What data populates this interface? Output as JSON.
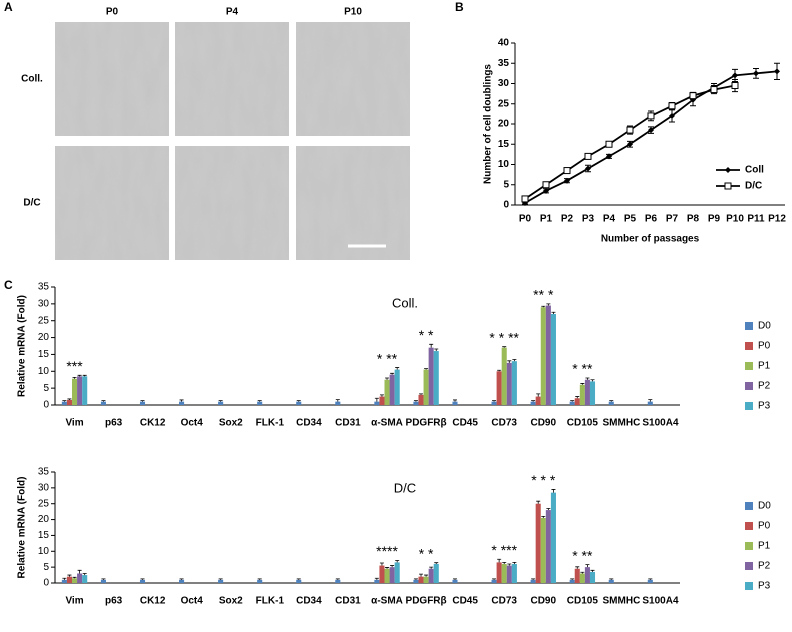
{
  "panel_labels": [
    "A",
    "B",
    "C"
  ],
  "micrographs": {
    "columns": [
      "P0",
      "P4",
      "P10"
    ],
    "rows": [
      "Coll.",
      "D/C"
    ]
  },
  "chart_data": [
    {
      "type": "line",
      "ylabel": "Number of cell doublings",
      "xlabel": "Number of passages",
      "categories": [
        "P0",
        "P1",
        "P2",
        "P3",
        "P4",
        "P5",
        "P6",
        "P7",
        "P8",
        "P9",
        "P10",
        "P11",
        "P12"
      ],
      "ylim": [
        0,
        40
      ],
      "yticks": [
        0,
        5,
        10,
        15,
        20,
        25,
        30,
        35,
        40
      ],
      "series": [
        {
          "name": "Coll",
          "color": "#000000",
          "marker": "diamond",
          "values": [
            0.5,
            3.5,
            6,
            9,
            12,
            15,
            18.5,
            22,
            26,
            29,
            32,
            32.5,
            33
          ],
          "errors": [
            0.3,
            0.5,
            0.5,
            0.8,
            0.5,
            0.7,
            0.8,
            1.5,
            1.5,
            1,
            1.5,
            1.2,
            2
          ]
        },
        {
          "name": "D/C",
          "color": "#000000",
          "marker": "square",
          "values": [
            1.5,
            5,
            8.5,
            12,
            15,
            18.5,
            22,
            24.5,
            27,
            28.5,
            29.5,
            null,
            null
          ],
          "errors": [
            0.3,
            0.5,
            0.5,
            0.6,
            0.5,
            1,
            1.2,
            0.8,
            0.8,
            1,
            1.5,
            null,
            null
          ]
        }
      ]
    },
    {
      "type": "bar",
      "title": "Coll.",
      "ylabel": "Relative mRNA (Fold)",
      "categories": [
        "Vim",
        "p63",
        "CK12",
        "Oct4",
        "Sox2",
        "FLK-1",
        "CD34",
        "CD31",
        "α-SMA",
        "PDGFRβ",
        "CD45",
        "CD73",
        "CD90",
        "CD105",
        "SMMHC",
        "S100A4"
      ],
      "ylim": [
        0,
        35
      ],
      "yticks": [
        0,
        5,
        10,
        15,
        20,
        25,
        30,
        35
      ],
      "series": [
        {
          "name": "D0",
          "color": "#4f81bd",
          "values": [
            1,
            1,
            1,
            1,
            1,
            1,
            1,
            1,
            1,
            1,
            1,
            1,
            1,
            1,
            1,
            1
          ],
          "errors": [
            0.3,
            0.3,
            0.3,
            0.5,
            0.3,
            0.3,
            0.3,
            0.6,
            1,
            0.3,
            0.5,
            0.3,
            0.3,
            0.3,
            0.3,
            0.6
          ]
        },
        {
          "name": "P0",
          "color": "#c0504d",
          "values": [
            1.5,
            0,
            0,
            0,
            0,
            0,
            0,
            0,
            2.5,
            3,
            0,
            10,
            2.5,
            2,
            0,
            0
          ],
          "errors": [
            0.3,
            0,
            0,
            0,
            0,
            0,
            0,
            0,
            0.5,
            0.3,
            0,
            0.3,
            0.8,
            0.5,
            0,
            0
          ]
        },
        {
          "name": "P1",
          "color": "#9bbb59",
          "values": [
            7.8,
            0,
            0,
            0,
            0,
            0,
            0,
            0,
            7.5,
            10.5,
            0,
            17,
            29,
            6,
            0,
            0
          ],
          "errors": [
            0.4,
            0,
            0,
            0,
            0,
            0,
            0,
            0,
            0.5,
            0.3,
            0,
            0.3,
            0.3,
            0.4,
            0,
            0
          ]
        },
        {
          "name": "P2",
          "color": "#8064a2",
          "values": [
            8.5,
            0,
            0,
            0,
            0,
            0,
            0,
            0,
            9,
            17,
            0,
            12.5,
            29.5,
            7.5,
            0,
            0
          ],
          "errors": [
            0.3,
            0,
            0,
            0,
            0,
            0,
            0,
            0,
            0.4,
            1,
            0,
            0.6,
            0.5,
            0.5,
            0,
            0
          ]
        },
        {
          "name": "P3",
          "color": "#4bacc6",
          "values": [
            8.5,
            0,
            0,
            0,
            0,
            0,
            0,
            0,
            10.5,
            16,
            0,
            13,
            27,
            7,
            0,
            0
          ],
          "errors": [
            0.3,
            0,
            0,
            0,
            0,
            0,
            0,
            0,
            0.6,
            0.6,
            0,
            0.5,
            0.5,
            0.5,
            0,
            0
          ]
        }
      ],
      "annotations": [
        {
          "x": "Vim",
          "text": "***"
        },
        {
          "x": "α-SMA",
          "text": "* **"
        },
        {
          "x": "PDGFRβ",
          "text": "* *"
        },
        {
          "x": "CD73",
          "text": "* * **"
        },
        {
          "x": "CD90",
          "text": "** *"
        },
        {
          "x": "CD105",
          "text": "* **"
        }
      ]
    },
    {
      "type": "bar",
      "title": "D/C",
      "ylabel": "Relative mRNA (Fold)",
      "categories": [
        "Vim",
        "p63",
        "CK12",
        "Oct4",
        "Sox2",
        "FLK-1",
        "CD34",
        "CD31",
        "α-SMA",
        "PDGFRβ",
        "CD45",
        "CD73",
        "CD90",
        "CD105",
        "SMMHC",
        "S100A4"
      ],
      "ylim": [
        0,
        35
      ],
      "yticks": [
        0,
        5,
        10,
        15,
        20,
        25,
        30,
        35
      ],
      "series": [
        {
          "name": "D0",
          "color": "#4f81bd",
          "values": [
            1,
            1,
            1,
            1,
            1,
            1,
            1,
            1,
            1,
            1,
            1,
            1,
            1,
            1,
            1,
            1
          ],
          "errors": [
            0.5,
            0.3,
            0.3,
            0.3,
            0.3,
            0.3,
            0.3,
            0.3,
            0.5,
            0.3,
            0.3,
            0.3,
            0.3,
            0.3,
            0.3,
            0.3
          ]
        },
        {
          "name": "P0",
          "color": "#c0504d",
          "values": [
            2,
            0,
            0,
            0,
            0,
            0,
            0,
            0,
            5.5,
            2,
            0,
            6.5,
            25,
            4.5,
            0,
            0
          ],
          "errors": [
            0.5,
            0,
            0,
            0,
            0,
            0,
            0,
            0,
            0.8,
            0.8,
            0,
            1,
            0.8,
            0.6,
            0,
            0
          ]
        },
        {
          "name": "P1",
          "color": "#9bbb59",
          "values": [
            1.5,
            0,
            0,
            0,
            0,
            0,
            0,
            0,
            4.5,
            2,
            0,
            6,
            20.5,
            3,
            0,
            0
          ],
          "errors": [
            0.3,
            0,
            0,
            0,
            0,
            0,
            0,
            0,
            0.4,
            0.5,
            0,
            0.5,
            0.5,
            0.4,
            0,
            0
          ]
        },
        {
          "name": "P2",
          "color": "#8064a2",
          "values": [
            3,
            0,
            0,
            0,
            0,
            0,
            0,
            0,
            5,
            4.5,
            0,
            5.5,
            23,
            5,
            0,
            0
          ],
          "errors": [
            1,
            0,
            0,
            0,
            0,
            0,
            0,
            0,
            0.5,
            0.5,
            0,
            0.5,
            0.5,
            0.8,
            0,
            0
          ]
        },
        {
          "name": "P3",
          "color": "#4bacc6",
          "values": [
            2.5,
            0,
            0,
            0,
            0,
            0,
            0,
            0,
            6.5,
            6,
            0,
            6,
            28.5,
            3.5,
            0,
            0
          ],
          "errors": [
            0.5,
            0,
            0,
            0,
            0,
            0,
            0,
            0,
            0.6,
            0.4,
            0,
            0.5,
            1,
            0.5,
            0,
            0
          ]
        }
      ],
      "annotations": [
        {
          "x": "α-SMA",
          "text": "****"
        },
        {
          "x": "PDGFRβ",
          "text": "* *"
        },
        {
          "x": "CD73",
          "text": "* ***"
        },
        {
          "x": "CD90",
          "text": "* * *"
        },
        {
          "x": "CD105",
          "text": "* **"
        }
      ]
    }
  ]
}
